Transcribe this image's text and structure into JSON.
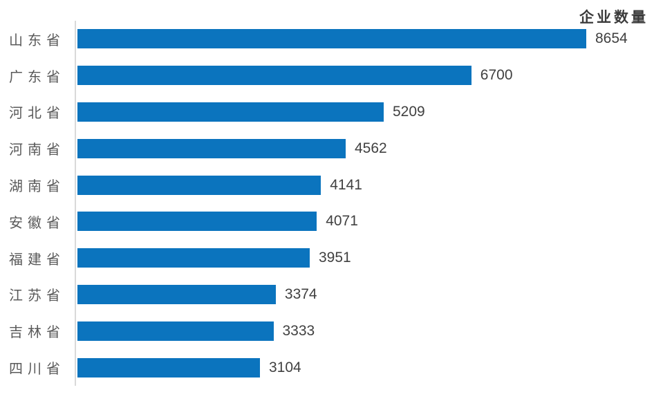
{
  "chart_data": {
    "type": "bar",
    "orientation": "horizontal",
    "title": "企业数量",
    "categories": [
      "山东省",
      "广东省",
      "河北省",
      "河南省",
      "湖南省",
      "安徽省",
      "福建省",
      "江苏省",
      "吉林省",
      "四川省"
    ],
    "values": [
      8654,
      6700,
      5209,
      4562,
      4141,
      4071,
      3951,
      3374,
      3333,
      3104
    ],
    "xlim": [
      0,
      9000
    ],
    "grid": false,
    "legend": false,
    "value_labels_position": "outside-end",
    "bar_color": "#0b74be",
    "axis_line_color": "#d9d9d9",
    "category_label_color": "#595959",
    "value_label_color": "#404040",
    "title_color": "#3b3b3b"
  }
}
